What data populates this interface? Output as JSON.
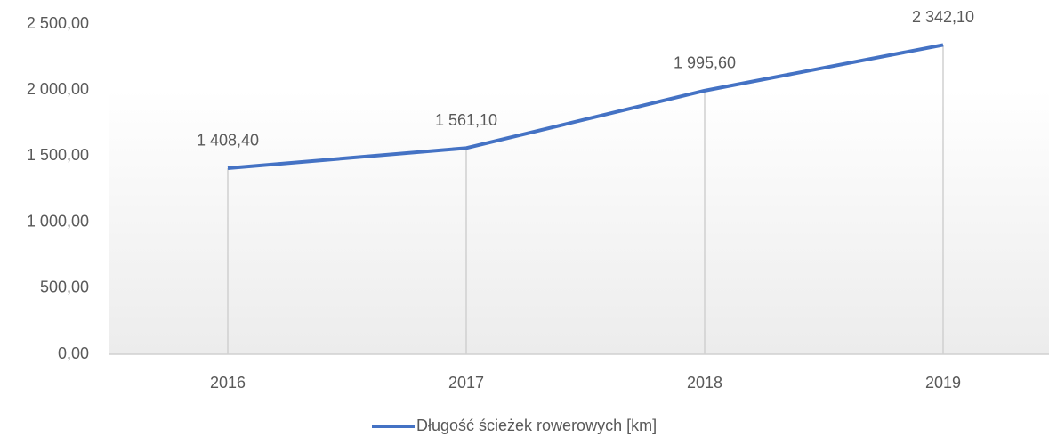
{
  "chart_data": {
    "type": "line",
    "categories": [
      "2016",
      "2017",
      "2018",
      "2019"
    ],
    "series": [
      {
        "name": "Długość ścieżek rowerowych [km]",
        "color": "#4472c4",
        "values": [
          1408.4,
          1561.1,
          1995.6,
          2342.1
        ],
        "value_labels": [
          "1 408,40",
          "1 561,10",
          "1 995,60",
          "2 342,10"
        ]
      }
    ],
    "ylim": [
      0,
      2500
    ],
    "yticks": [
      {
        "value": 0,
        "label": "0,00"
      },
      {
        "value": 500,
        "label": "500,00"
      },
      {
        "value": 1000,
        "label": "1 000,00"
      },
      {
        "value": 1500,
        "label": "1 500,00"
      },
      {
        "value": 2000,
        "label": "2 000,00"
      },
      {
        "value": 2500,
        "label": "2 500,00"
      }
    ],
    "grid": false,
    "drop_lines": true,
    "legend": "bottom"
  }
}
